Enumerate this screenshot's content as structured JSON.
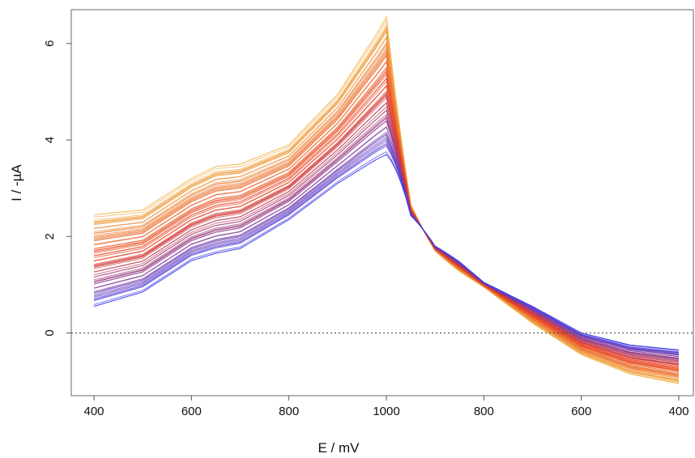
{
  "chart_data": {
    "type": "line",
    "xlabel": "E / mV",
    "ylabel": "I / -µA",
    "x_sweep": [
      400,
      1000,
      400
    ],
    "x_ticks": [
      "400",
      "600",
      "800",
      "1000",
      "800",
      "600",
      "400"
    ],
    "y_ticks": [
      "0",
      "2",
      "4",
      "6"
    ],
    "ylim": [
      -1.3,
      6.7
    ],
    "grid": false,
    "reference_line": {
      "y": 0,
      "style": "dotted"
    },
    "color_scale": [
      "#f2b64a",
      "#e83a1e",
      "#3c3cf0"
    ],
    "series_count": 64,
    "envelope": {
      "forward_x_mV": [
        400,
        500,
        600,
        650,
        700,
        800,
        900,
        980,
        1000
      ],
      "forward_y_min_uA": [
        0.55,
        0.85,
        1.5,
        1.65,
        1.75,
        2.35,
        3.1,
        3.6,
        3.7
      ],
      "forward_y_max_uA": [
        2.45,
        2.55,
        3.2,
        3.45,
        3.5,
        3.9,
        4.95,
        6.2,
        6.55
      ],
      "reverse_x_mV": [
        1000,
        950,
        900,
        800,
        700,
        600,
        500,
        400
      ],
      "reverse_y_min_uA": [
        3.7,
        2.2,
        1.6,
        0.95,
        0.2,
        -0.45,
        -0.85,
        -1.05
      ],
      "reverse_y_max_uA": [
        6.55,
        2.9,
        1.9,
        1.05,
        0.55,
        0.0,
        -0.25,
        -0.35
      ]
    }
  }
}
